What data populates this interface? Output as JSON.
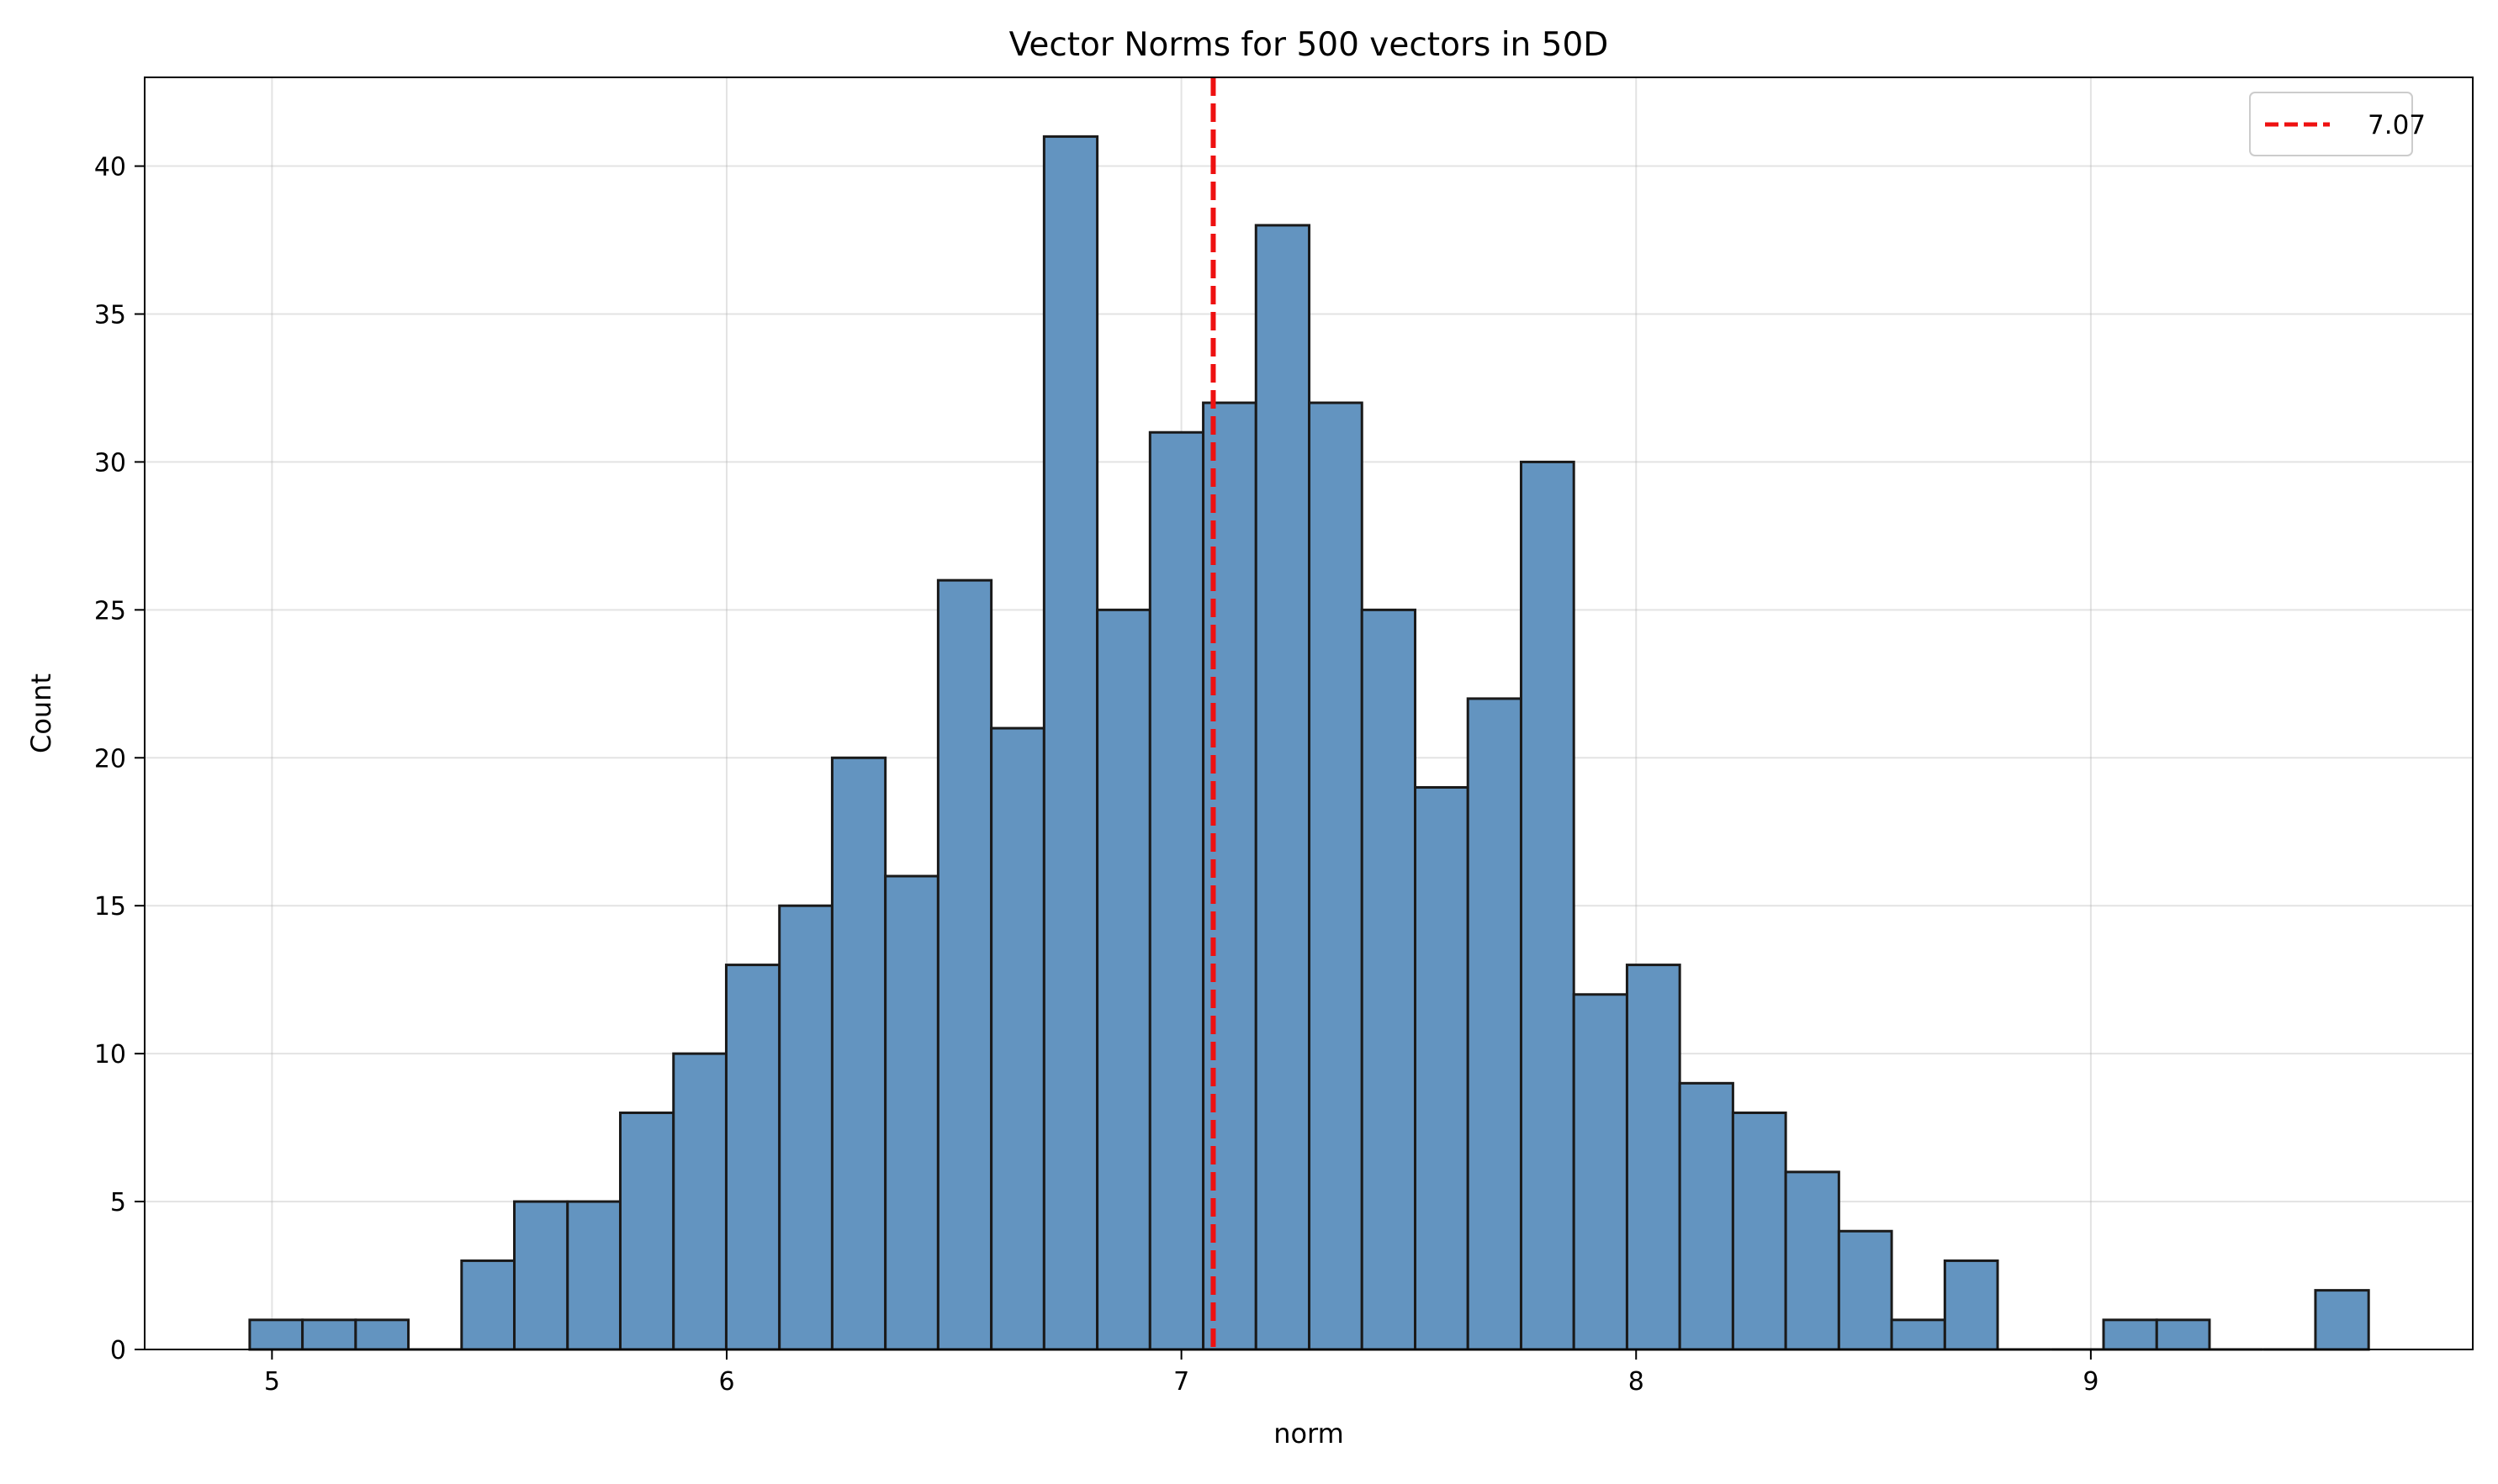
{
  "chart_data": {
    "type": "bar",
    "title": "Vector Norms for 500 vectors in 50D",
    "xlabel": "norm",
    "ylabel": "Count",
    "xlim": [
      4.72,
      9.84
    ],
    "ylim": [
      0,
      43
    ],
    "x_ticks": [
      5,
      6,
      7,
      8,
      9
    ],
    "y_ticks": [
      0,
      5,
      10,
      15,
      20,
      25,
      30,
      35,
      40
    ],
    "grid": true,
    "bin_edges": [
      4.951,
      5.067,
      5.184,
      5.3,
      5.417,
      5.533,
      5.65,
      5.766,
      5.883,
      5.999,
      6.116,
      6.232,
      6.349,
      6.465,
      6.582,
      6.698,
      6.815,
      6.931,
      7.048,
      7.164,
      7.281,
      7.397,
      7.514,
      7.63,
      7.747,
      7.863,
      7.98,
      8.096,
      8.213,
      8.329,
      8.446,
      8.562,
      8.679,
      8.795,
      8.912,
      9.028,
      9.145,
      9.261,
      9.378,
      9.494,
      9.611
    ],
    "counts": [
      1,
      1,
      1,
      0,
      3,
      5,
      5,
      8,
      10,
      13,
      15,
      20,
      16,
      26,
      21,
      41,
      25,
      31,
      32,
      38,
      32,
      25,
      19,
      22,
      30,
      12,
      13,
      9,
      8,
      6,
      4,
      1,
      3,
      0,
      0,
      1,
      1,
      0,
      0,
      2
    ],
    "bar_color": "#6394c0",
    "bar_edge_color": "#1a1a1a",
    "reference_line": {
      "value": 7.07,
      "label": "7.07",
      "color": "#ee1111",
      "style": "dashed"
    },
    "legend": {
      "placement": "top-right",
      "entries": [
        "7.07"
      ]
    }
  }
}
